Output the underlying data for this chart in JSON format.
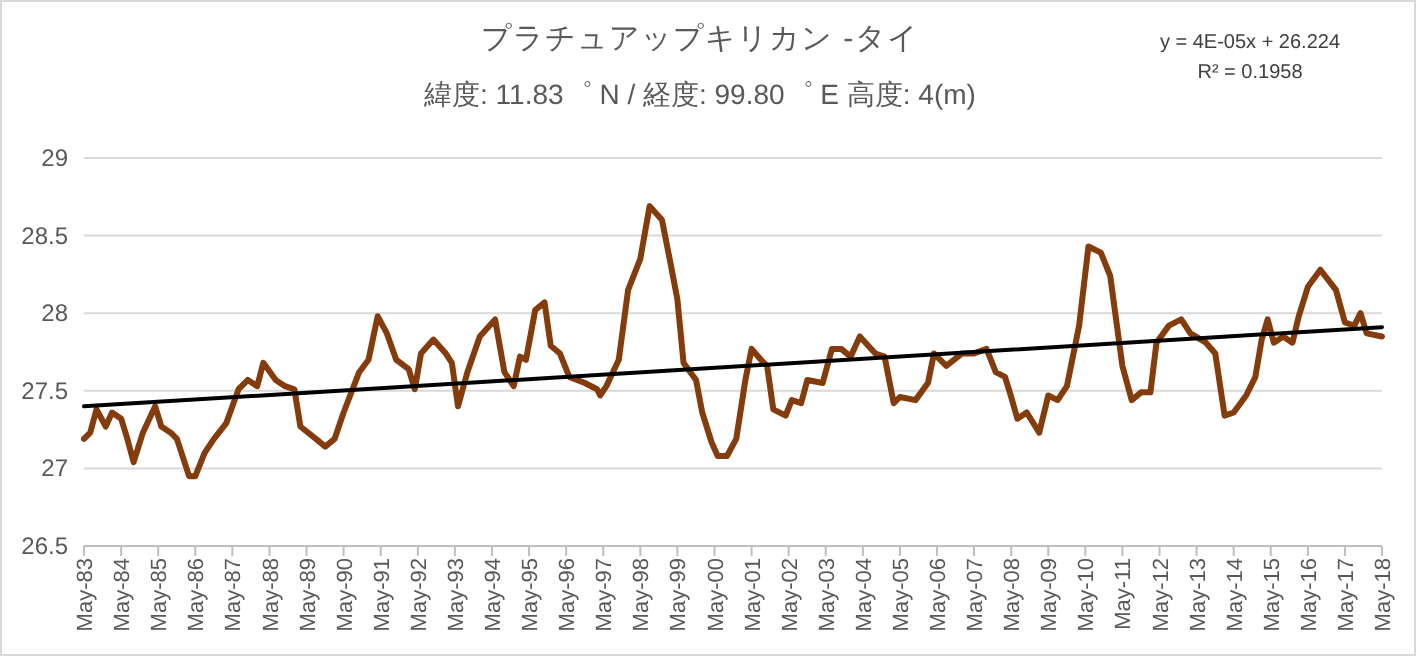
{
  "chart_data": {
    "type": "line",
    "title": "プラチュアップキリカン -タイ",
    "subtitle": "緯度: 11.83゜ N / 経度: 99.80゜ E   高度: 4(m)",
    "annotations": [
      "y = 4E-05x + 26.224",
      "R² = 0.1958"
    ],
    "xlim": [
      "1983-05",
      "2018-05"
    ],
    "xticks": [
      {
        "value": "1983-05",
        "label": "May-83"
      },
      {
        "value": "1984-05",
        "label": "May-84"
      },
      {
        "value": "1985-05",
        "label": "May-85"
      },
      {
        "value": "1986-05",
        "label": "May-86"
      },
      {
        "value": "1987-05",
        "label": "May-87"
      },
      {
        "value": "1988-05",
        "label": "May-88"
      },
      {
        "value": "1989-05",
        "label": "May-89"
      },
      {
        "value": "1990-05",
        "label": "May-90"
      },
      {
        "value": "1991-05",
        "label": "May-91"
      },
      {
        "value": "1992-05",
        "label": "May-92"
      },
      {
        "value": "1993-05",
        "label": "May-93"
      },
      {
        "value": "1994-05",
        "label": "May-94"
      },
      {
        "value": "1995-05",
        "label": "May-95"
      },
      {
        "value": "1996-05",
        "label": "May-96"
      },
      {
        "value": "1997-05",
        "label": "May-97"
      },
      {
        "value": "1998-05",
        "label": "May-98"
      },
      {
        "value": "1999-05",
        "label": "May-99"
      },
      {
        "value": "2000-05",
        "label": "May-00"
      },
      {
        "value": "2001-05",
        "label": "May-01"
      },
      {
        "value": "2002-05",
        "label": "May-02"
      },
      {
        "value": "2003-05",
        "label": "May-03"
      },
      {
        "value": "2004-05",
        "label": "May-04"
      },
      {
        "value": "2005-05",
        "label": "May-05"
      },
      {
        "value": "2006-05",
        "label": "May-06"
      },
      {
        "value": "2007-05",
        "label": "May-07"
      },
      {
        "value": "2008-05",
        "label": "May-08"
      },
      {
        "value": "2009-05",
        "label": "May-09"
      },
      {
        "value": "2010-05",
        "label": "May-10"
      },
      {
        "value": "2011-05",
        "label": "May-11"
      },
      {
        "value": "2012-05",
        "label": "May-12"
      },
      {
        "value": "2013-05",
        "label": "May-13"
      },
      {
        "value": "2014-05",
        "label": "May-14"
      },
      {
        "value": "2015-05",
        "label": "May-15"
      },
      {
        "value": "2016-05",
        "label": "May-16"
      },
      {
        "value": "2017-05",
        "label": "May-17"
      },
      {
        "value": "2018-05",
        "label": "May-18"
      }
    ],
    "ylim": [
      26.5,
      29
    ],
    "yticks": [
      26.5,
      27,
      27.5,
      28,
      28.5,
      29
    ],
    "grid": "y",
    "series": [
      {
        "color": "#843c0c",
        "x": [
          "1983-05",
          "1983-07",
          "1983-09",
          "1983-12",
          "1984-02",
          "1984-05",
          "1984-07",
          "1984-09",
          "1984-12",
          "1985-04",
          "1985-06",
          "1985-09",
          "1985-11",
          "1986-03",
          "1986-05",
          "1986-08",
          "1986-11",
          "1987-03",
          "1987-07",
          "1987-10",
          "1988-01",
          "1988-03",
          "1988-07",
          "1988-10",
          "1989-01",
          "1989-03",
          "1989-08",
          "1989-11",
          "1990-02",
          "1990-05",
          "1990-10",
          "1991-01",
          "1991-04",
          "1991-07",
          "1991-10",
          "1992-02",
          "1992-04",
          "1992-06",
          "1992-10",
          "1993-02",
          "1993-04",
          "1993-06",
          "1993-09",
          "1994-01",
          "1994-06",
          "1994-09",
          "1994-12",
          "1995-02",
          "1995-04",
          "1995-07",
          "1995-10",
          "1995-12",
          "1996-03",
          "1996-06",
          "1996-11",
          "1997-03",
          "1997-04",
          "1997-06",
          "1997-10",
          "1998-01",
          "1998-05",
          "1998-08",
          "1998-12",
          "1999-03",
          "1999-05",
          "1999-07",
          "1999-11",
          "2000-01",
          "2000-04",
          "2000-06",
          "2000-09",
          "2000-12",
          "2001-03",
          "2001-05",
          "2001-08",
          "2001-10",
          "2001-12",
          "2002-04",
          "2002-06",
          "2002-09",
          "2002-11",
          "2003-04",
          "2003-07",
          "2003-10",
          "2004-01",
          "2004-04",
          "2004-09",
          "2004-12",
          "2005-03",
          "2005-05",
          "2005-10",
          "2006-02",
          "2006-04",
          "2006-08",
          "2007-01",
          "2007-05",
          "2007-09",
          "2007-12",
          "2008-03",
          "2008-05",
          "2008-07",
          "2008-10",
          "2009-02",
          "2009-05",
          "2009-08",
          "2009-11",
          "2010-03",
          "2010-06",
          "2010-10",
          "2011-01",
          "2011-05",
          "2011-08",
          "2011-11",
          "2012-02",
          "2012-04",
          "2012-08",
          "2012-12",
          "2013-03",
          "2013-08",
          "2013-11",
          "2014-02",
          "2014-05",
          "2014-09",
          "2014-12",
          "2015-02",
          "2015-04",
          "2015-06",
          "2015-09",
          "2015-12",
          "2016-02",
          "2016-05",
          "2016-09",
          "2017-02",
          "2017-05",
          "2017-08",
          "2017-10",
          "2017-12",
          "2018-05"
        ],
        "values": [
          27.19,
          27.23,
          27.38,
          27.27,
          27.36,
          27.32,
          27.19,
          27.04,
          27.23,
          27.4,
          27.27,
          27.23,
          27.19,
          26.95,
          26.95,
          27.1,
          27.19,
          27.29,
          27.51,
          27.57,
          27.53,
          27.68,
          27.57,
          27.53,
          27.51,
          27.27,
          27.19,
          27.14,
          27.19,
          27.36,
          27.62,
          27.7,
          27.98,
          27.87,
          27.7,
          27.64,
          27.51,
          27.74,
          27.83,
          27.74,
          27.68,
          27.4,
          27.62,
          27.85,
          27.96,
          27.62,
          27.53,
          27.72,
          27.7,
          28.02,
          28.07,
          27.79,
          27.74,
          27.59,
          27.55,
          27.51,
          27.47,
          27.53,
          27.7,
          28.15,
          28.35,
          28.69,
          28.6,
          28.3,
          28.09,
          27.68,
          27.57,
          27.36,
          27.17,
          27.08,
          27.08,
          27.19,
          27.57,
          27.77,
          27.7,
          27.66,
          27.38,
          27.34,
          27.44,
          27.42,
          27.57,
          27.55,
          27.77,
          27.77,
          27.72,
          27.85,
          27.74,
          27.72,
          27.42,
          27.46,
          27.44,
          27.55,
          27.74,
          27.66,
          27.74,
          27.74,
          27.77,
          27.62,
          27.59,
          27.46,
          27.32,
          27.36,
          27.23,
          27.47,
          27.44,
          27.53,
          27.92,
          28.43,
          28.39,
          28.24,
          27.66,
          27.44,
          27.49,
          27.49,
          27.81,
          27.92,
          27.96,
          27.87,
          27.81,
          27.74,
          27.34,
          27.36,
          27.47,
          27.59,
          27.83,
          27.96,
          27.81,
          27.85,
          27.81,
          27.98,
          28.17,
          28.28,
          28.15,
          27.94,
          27.92,
          28.0,
          27.87,
          27.85
        ]
      },
      {
        "type": "line",
        "color": "#000000",
        "x": [
          "1983-05",
          "2018-05"
        ],
        "values": [
          27.4,
          27.91
        ]
      }
    ]
  }
}
